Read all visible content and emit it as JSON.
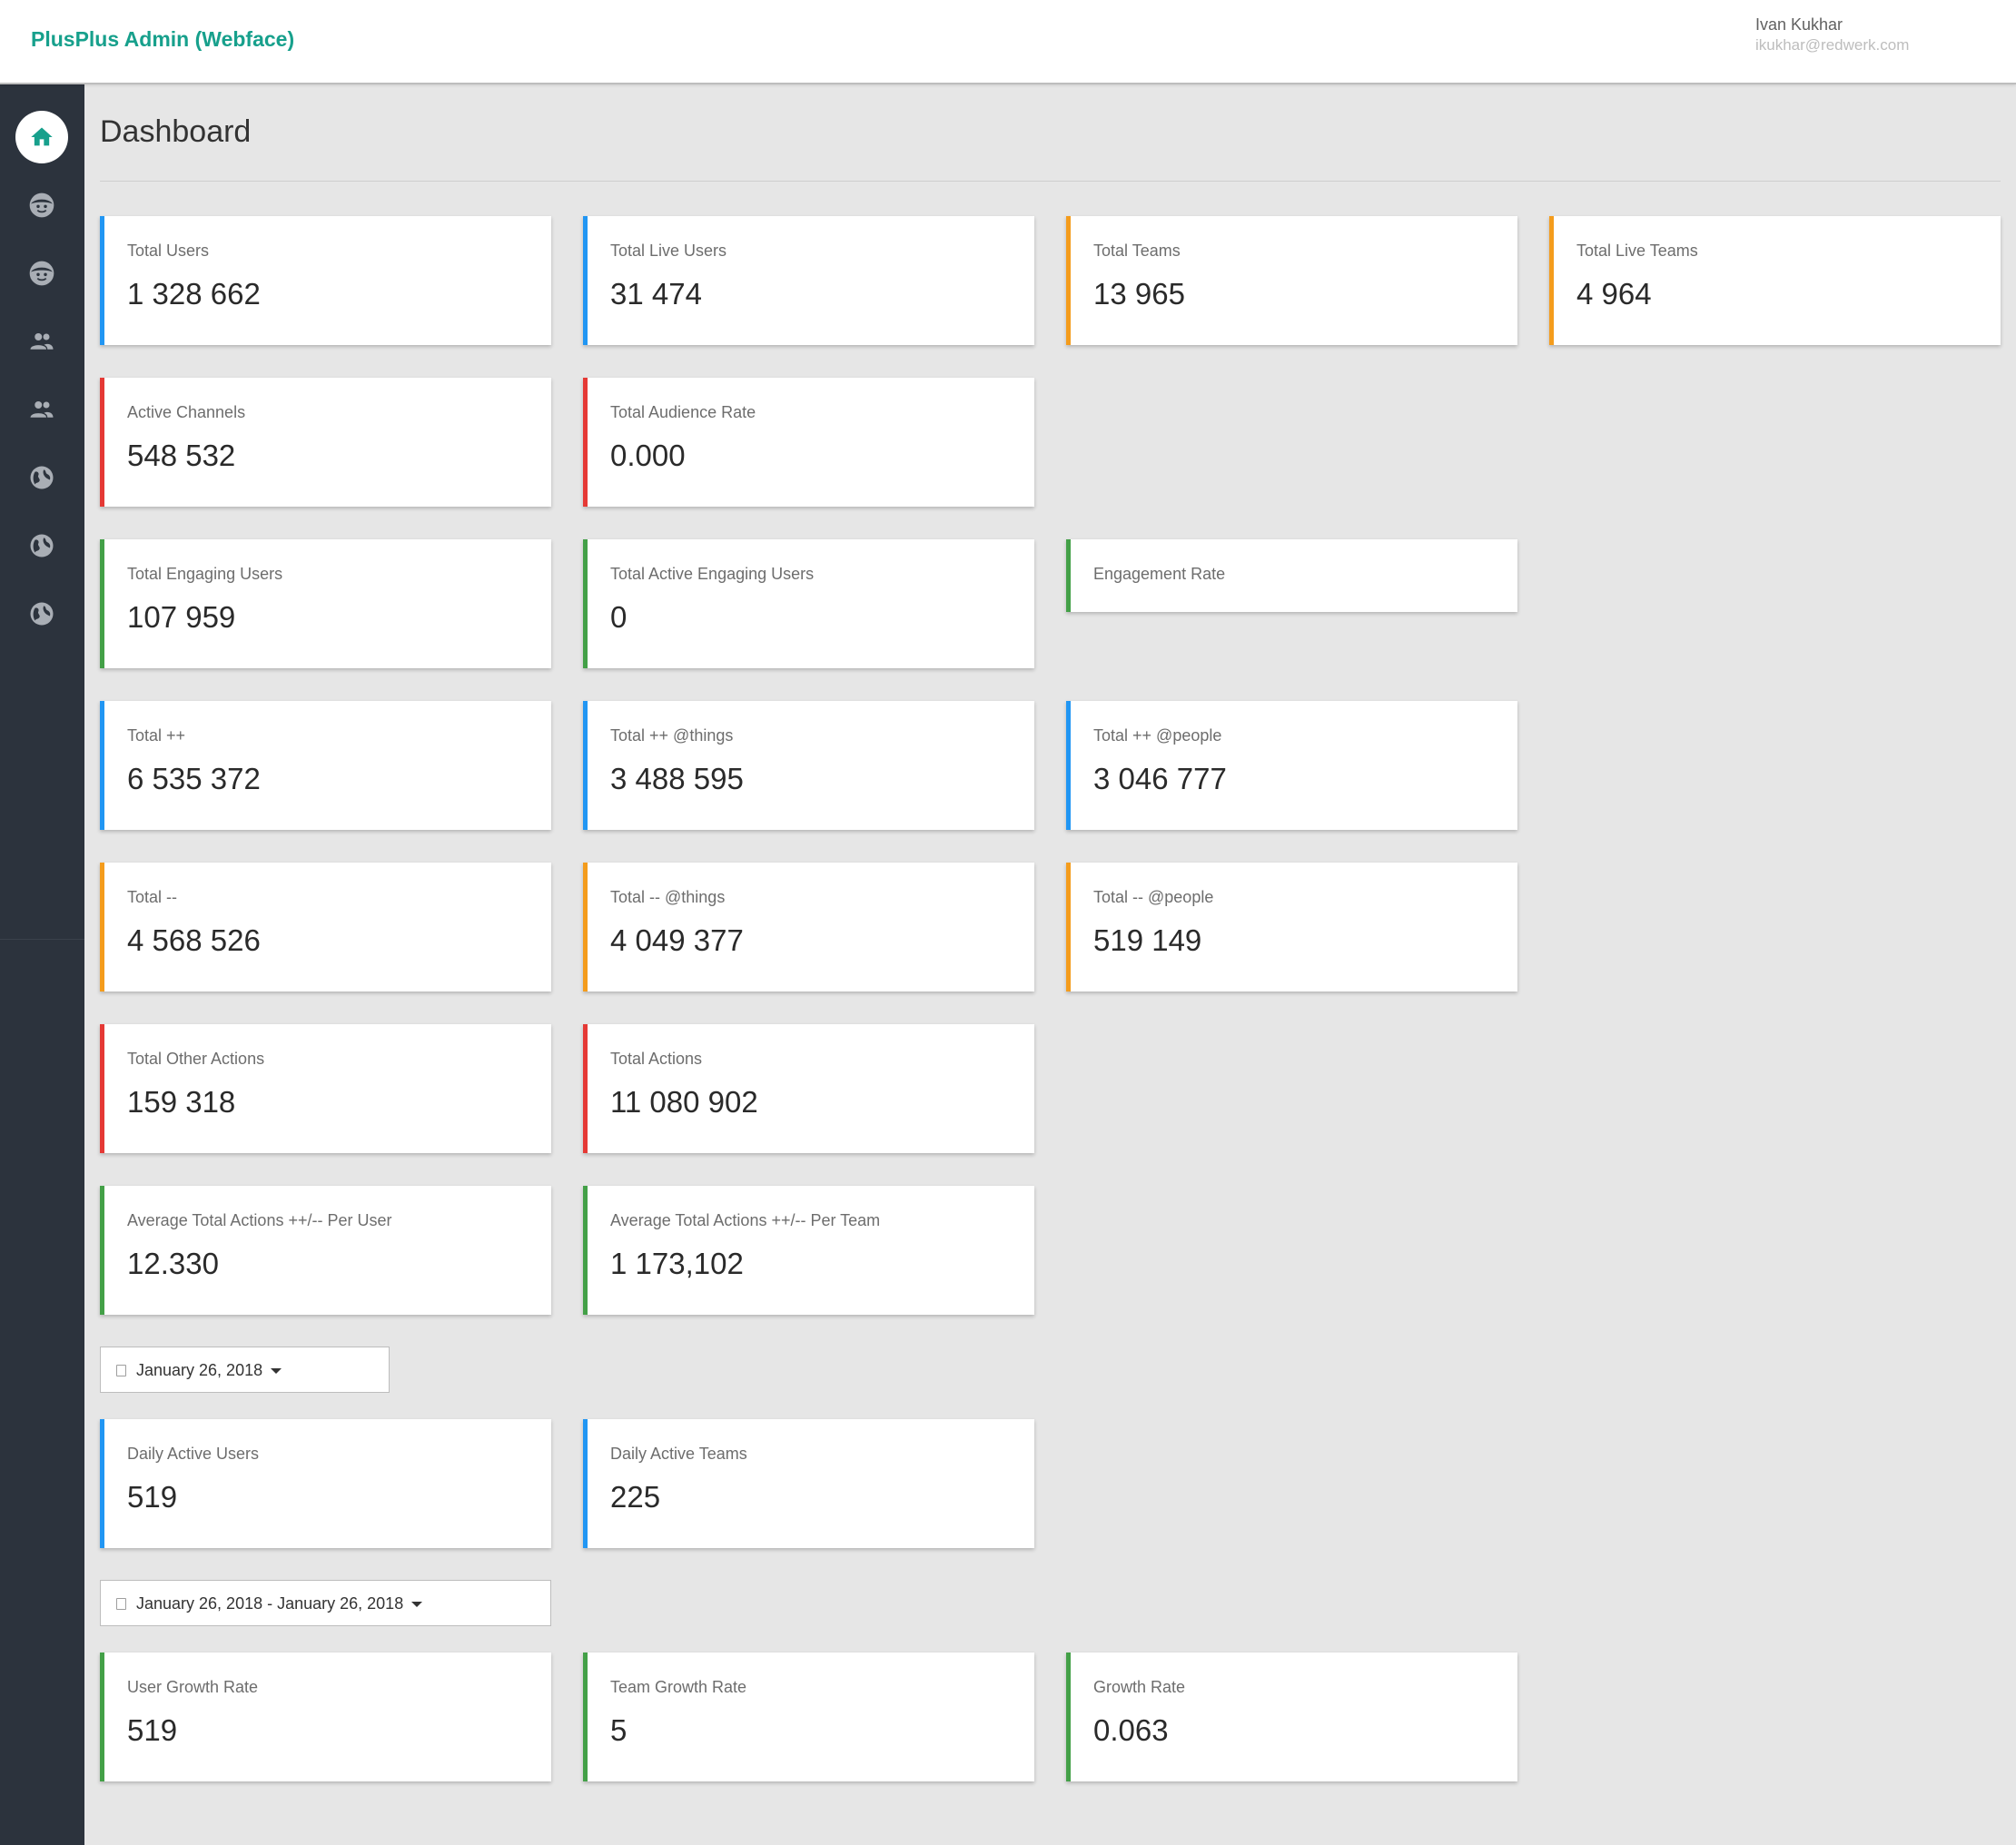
{
  "header": {
    "brand": "PlusPlus Admin (Webface)",
    "user_name": "Ivan Kukhar",
    "user_email": "ikukhar@redwerk.com"
  },
  "sidebar": {
    "items": [
      {
        "icon": "home-icon",
        "active": true
      },
      {
        "icon": "face-icon",
        "active": false
      },
      {
        "icon": "face-icon",
        "active": false
      },
      {
        "icon": "people-icon",
        "active": false
      },
      {
        "icon": "people-icon",
        "active": false
      },
      {
        "icon": "globe-icon",
        "active": false
      },
      {
        "icon": "globe-icon",
        "active": false
      },
      {
        "icon": "globe-icon",
        "active": false
      }
    ]
  },
  "page_title": "Dashboard",
  "colors": {
    "blue": "#2196f3",
    "orange": "#f49c1c",
    "red": "#e53935",
    "green": "#43a047",
    "brand": "#17a08c",
    "sidebar": "#2c333d"
  },
  "cards": {
    "total_users": {
      "label": "Total Users",
      "value": "1 328 662"
    },
    "total_live_users": {
      "label": "Total Live Users",
      "value": "31 474"
    },
    "total_teams": {
      "label": "Total Teams",
      "value": "13 965"
    },
    "total_live_teams": {
      "label": "Total Live Teams",
      "value": "4 964"
    },
    "active_channels": {
      "label": "Active Channels",
      "value": "548 532"
    },
    "total_audience_rate": {
      "label": "Total Audience Rate",
      "value": "0.000"
    },
    "total_engaging_users": {
      "label": "Total Engaging Users",
      "value": "107 959"
    },
    "total_active_engaging_users": {
      "label": "Total Active Engaging Users",
      "value": "0"
    },
    "engagement_rate": {
      "label": "Engagement Rate",
      "value": ""
    },
    "total_plus": {
      "label": "Total ++",
      "value": "6 535 372"
    },
    "total_plus_things": {
      "label": "Total ++ @things",
      "value": "3 488 595"
    },
    "total_plus_people": {
      "label": "Total ++ @people",
      "value": "3 046 777"
    },
    "total_minus": {
      "label": "Total --",
      "value": "4 568 526"
    },
    "total_minus_things": {
      "label": "Total -- @things",
      "value": "4 049 377"
    },
    "total_minus_people": {
      "label": "Total -- @people",
      "value": "519 149"
    },
    "total_other_actions": {
      "label": "Total Other Actions",
      "value": "159 318"
    },
    "total_actions": {
      "label": "Total Actions",
      "value": "11 080 902"
    },
    "avg_actions_per_user": {
      "label": "Average Total Actions ++/-- Per User",
      "value": "12.330"
    },
    "avg_actions_per_team": {
      "label": "Average Total Actions ++/-- Per Team",
      "value": "1 173,102"
    },
    "daily_active_users": {
      "label": "Daily Active Users",
      "value": "519"
    },
    "daily_active_teams": {
      "label": "Daily Active Teams",
      "value": "225"
    },
    "user_growth_rate": {
      "label": "User Growth Rate",
      "value": "519"
    },
    "team_growth_rate": {
      "label": "Team Growth Rate",
      "value": "5"
    },
    "growth_rate": {
      "label": "Growth Rate",
      "value": "0.063"
    }
  },
  "date_pickers": {
    "single": {
      "icon": "calendar-icon",
      "text": "January 26, 2018"
    },
    "range": {
      "icon": "calendar-icon",
      "text": "January 26, 2018 - January 26, 2018"
    }
  }
}
